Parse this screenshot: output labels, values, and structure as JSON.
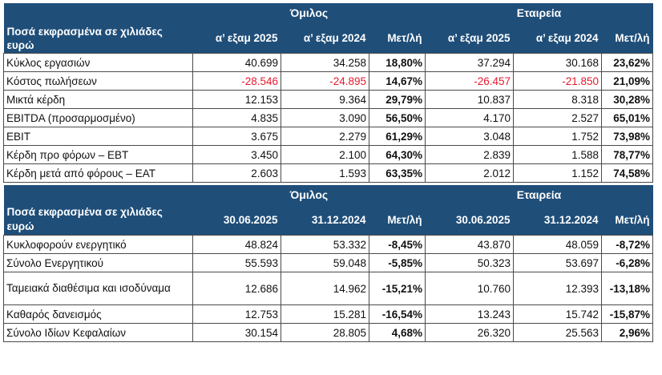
{
  "income": {
    "group_label": "Όμιλος",
    "company_label": "Εταιρεία",
    "caption": "Ποσά εκφρασμένα σε χιλιάδες ευρώ",
    "columns": [
      "α’ εξαμ 2025",
      "α’ εξαμ 2024",
      "Μετ/λή",
      "α’ εξαμ 2025",
      "α’ εξαμ 2024",
      "Μετ/λή"
    ],
    "rows": [
      {
        "label": "Κύκλος εργασιών",
        "g1": "40.699",
        "g2": "34.258",
        "gp": "18,80%",
        "c1": "37.294",
        "c2": "30.168",
        "cp": "23,62%",
        "negative": false
      },
      {
        "label": "Κόστος πωλήσεων",
        "g1": "-28.546",
        "g2": "-24.895",
        "gp": "14,67%",
        "c1": "-26.457",
        "c2": "-21.850",
        "cp": "21,09%",
        "negative": true
      },
      {
        "label": "Μικτά κέρδη",
        "g1": "12.153",
        "g2": "9.364",
        "gp": "29,79%",
        "c1": "10.837",
        "c2": "8.318",
        "cp": "30,28%",
        "negative": false
      },
      {
        "label": "EBITDA (προσαρμοσμένο)",
        "g1": "4.835",
        "g2": "3.090",
        "gp": "56,50%",
        "c1": "4.170",
        "c2": "2.527",
        "cp": "65,01%",
        "negative": false
      },
      {
        "label": "EBIT",
        "g1": "3.675",
        "g2": "2.279",
        "gp": "61,29%",
        "c1": "3.048",
        "c2": "1.752",
        "cp": "73,98%",
        "negative": false
      },
      {
        "label": "Κέρδη προ φόρων – EBT",
        "g1": "3.450",
        "g2": "2.100",
        "gp": "64,30%",
        "c1": "2.839",
        "c2": "1.588",
        "cp": "78,77%",
        "negative": false
      },
      {
        "label": "Κέρδη μετά από φόρους – EAT",
        "g1": "2.603",
        "g2": "1.593",
        "gp": "63,35%",
        "c1": "2.012",
        "c2": "1.152",
        "cp": "74,58%",
        "negative": false
      }
    ]
  },
  "balance": {
    "group_label": "Όμιλος",
    "company_label": "Εταιρεία",
    "caption": "Ποσά εκφρασμένα σε χιλιάδες ευρώ",
    "columns": [
      "30.06.2025",
      "31.12.2024",
      "Μετ/λή",
      "30.06.2025",
      "31.12.2024",
      "Μετ/λή"
    ],
    "rows": [
      {
        "label": "Κυκλοφορούν ενεργητικό",
        "g1": "48.824",
        "g2": "53.332",
        "gp": "-8,45%",
        "c1": "43.870",
        "c2": "48.059",
        "cp": "-8,72%",
        "tall": false
      },
      {
        "label": "Σύνολο Ενεργητικού",
        "g1": "55.593",
        "g2": "59.048",
        "gp": "-5,85%",
        "c1": "50.323",
        "c2": "53.697",
        "cp": "-6,28%",
        "tall": false
      },
      {
        "label": "Ταμειακά διαθέσιμα και ισοδύναμα",
        "g1": "12.686",
        "g2": "14.962",
        "gp": "-15,21%",
        "c1": "10.760",
        "c2": "12.393",
        "cp": "-13,18%",
        "tall": true
      },
      {
        "label": "Καθαρός δανεισμός",
        "g1": "12.753",
        "g2": "15.281",
        "gp": "-16,54%",
        "c1": "13.243",
        "c2": "15.742",
        "cp": "-15,87%",
        "tall": false
      },
      {
        "label": "Σύνολο Ιδίων Κεφαλαίων",
        "g1": "30.154",
        "g2": "28.805",
        "gp": "4,68%",
        "c1": "26.320",
        "c2": "25.563",
        "cp": "2,96%",
        "tall": false
      }
    ]
  },
  "colors": {
    "header_bg": "#1f4e79",
    "header_text": "#ffffff",
    "negative_text": "#e8192c",
    "border": "#4a4a4a"
  }
}
